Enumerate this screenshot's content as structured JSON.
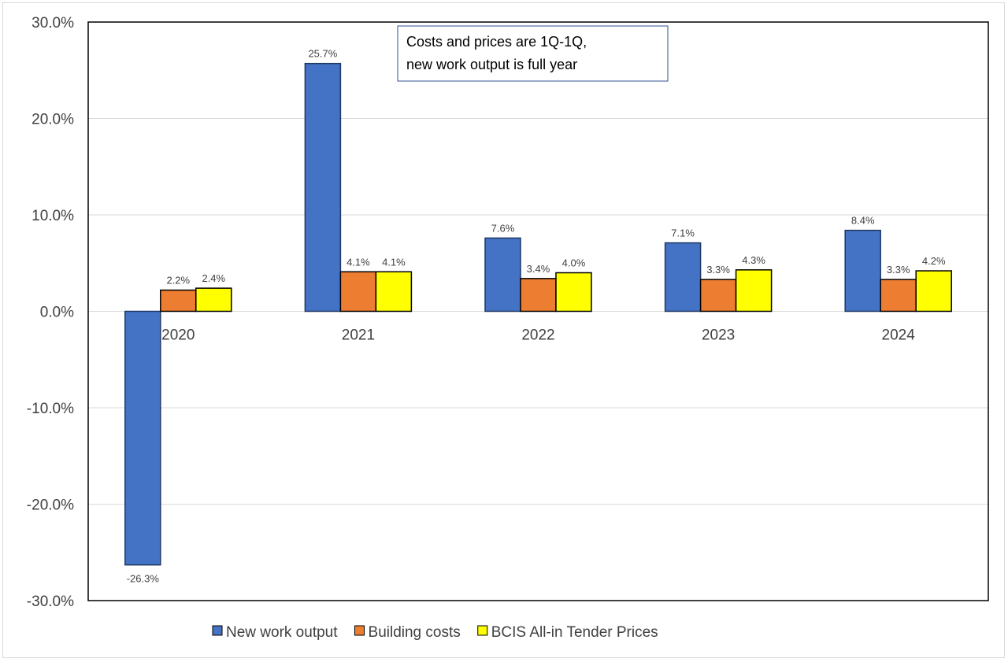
{
  "chart_data": {
    "type": "bar",
    "categories": [
      "2020",
      "2021",
      "2022",
      "2023",
      "2024"
    ],
    "series": [
      {
        "name": "New work output",
        "color": "#4472C4",
        "values": [
          -26.3,
          25.7,
          7.6,
          7.1,
          8.4
        ],
        "labels": [
          "-26.3%",
          "25.7%",
          "7.6%",
          "7.1%",
          "8.4%"
        ]
      },
      {
        "name": "Building costs",
        "color": "#ED7D31",
        "values": [
          2.2,
          4.1,
          3.4,
          3.3,
          3.3
        ],
        "labels": [
          "2.2%",
          "4.1%",
          "3.4%",
          "3.3%",
          "3.3%"
        ]
      },
      {
        "name": "BCIS All-in Tender Prices",
        "color": "#FFFF00",
        "values": [
          2.4,
          4.1,
          4.0,
          4.3,
          4.2
        ],
        "labels": [
          "2.4%",
          "4.1%",
          "4.0%",
          "4.3%",
          "4.2%"
        ]
      }
    ],
    "ylim": [
      -30,
      30
    ],
    "yticks": [
      "30.0%",
      "20.0%",
      "10.0%",
      "0.0%",
      "-10.0%",
      "-20.0%",
      "-30.0%"
    ],
    "ytick_values": [
      30,
      20,
      10,
      0,
      -10,
      -20,
      -30
    ],
    "grid": true,
    "legend": "bottom",
    "annotation": [
      "Costs and prices are 1Q-1Q,",
      "new work output is full year"
    ]
  }
}
